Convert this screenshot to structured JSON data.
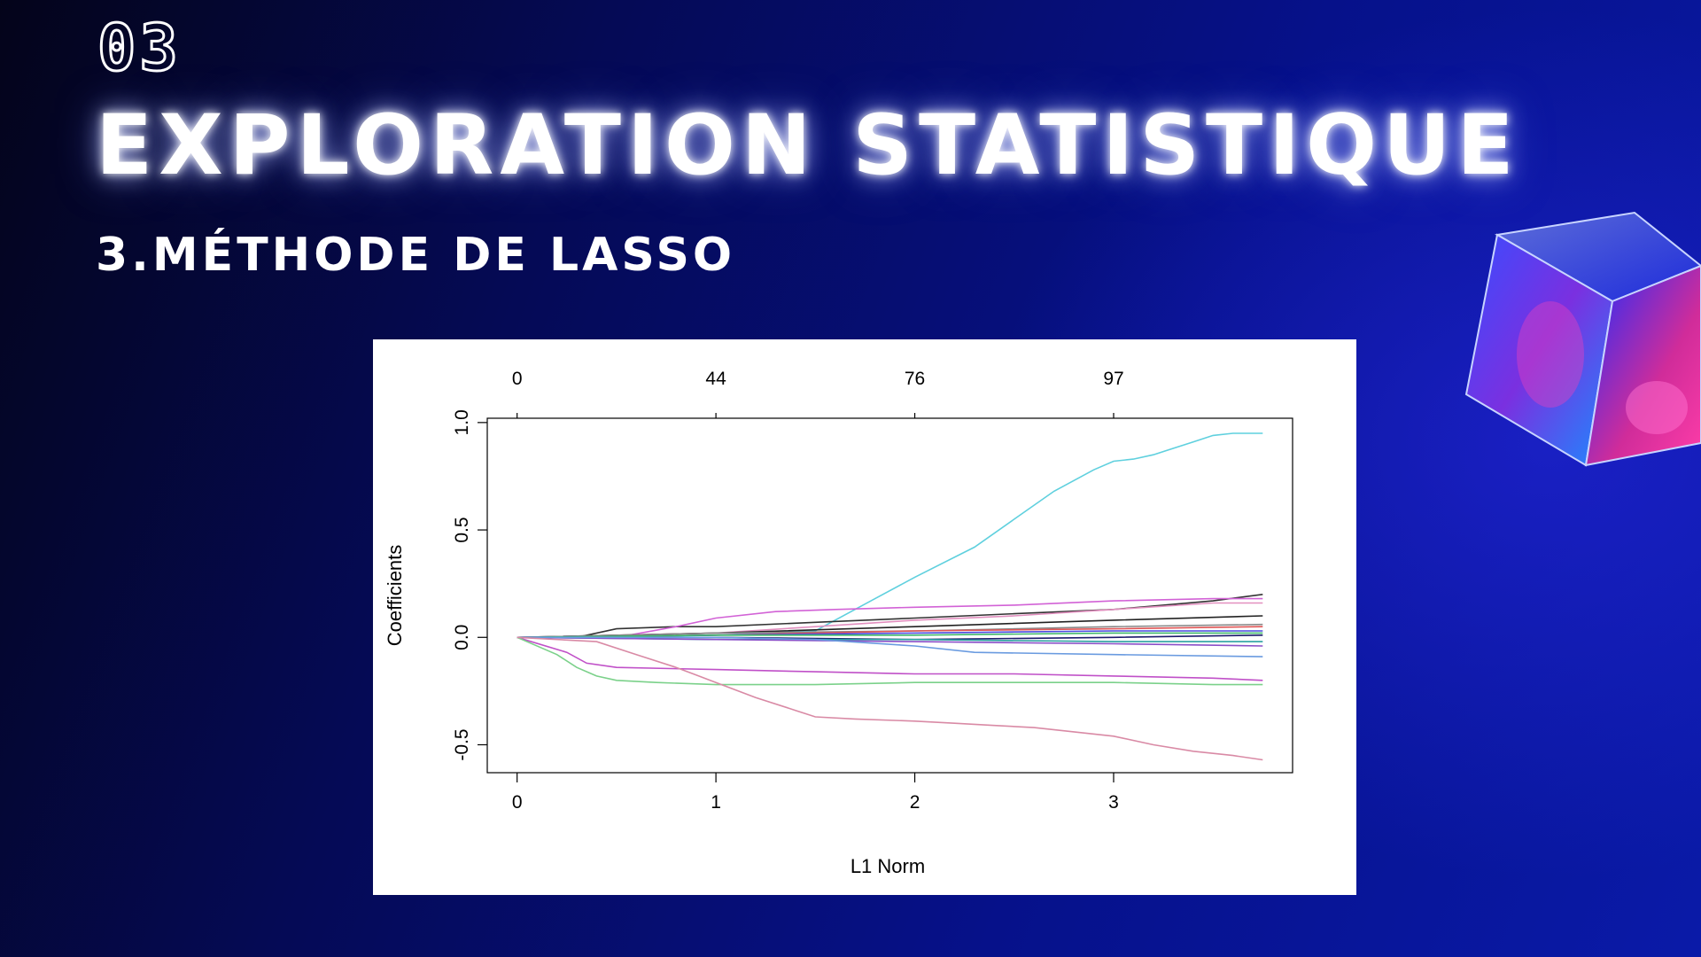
{
  "slide": {
    "chapter_number": "03",
    "title": "EXPLORATION STATISTIQUE",
    "subtitle": "3.MÉTHODE DE LASSO"
  },
  "chart_data": {
    "type": "line",
    "title": "",
    "xlabel": "L1 Norm",
    "ylabel": "Coefficients",
    "xlim": [
      -0.15,
      3.9
    ],
    "ylim": [
      -0.63,
      1.02
    ],
    "x_ticks": [
      0,
      1,
      2,
      3
    ],
    "y_ticks": [
      -0.5,
      0.0,
      0.5,
      1.0
    ],
    "x_tick_labels": [
      "0",
      "1",
      "2",
      "3"
    ],
    "y_tick_labels": [
      "-0.5",
      "0.0",
      "0.5",
      "1.0"
    ],
    "top_axis": {
      "positions": [
        0,
        1,
        2,
        3
      ],
      "labels": [
        "0",
        "44",
        "76",
        "97"
      ]
    },
    "series": [
      {
        "name": "coef-cyan",
        "color": "#5fd0de",
        "x": [
          0,
          0.5,
          1.0,
          1.5,
          1.8,
          2.0,
          2.3,
          2.5,
          2.7,
          2.9,
          3.0,
          3.1,
          3.2,
          3.4,
          3.5,
          3.6,
          3.75
        ],
        "y": [
          0,
          0,
          0.01,
          0.03,
          0.18,
          0.28,
          0.42,
          0.55,
          0.68,
          0.78,
          0.82,
          0.83,
          0.85,
          0.91,
          0.94,
          0.95,
          0.95
        ]
      },
      {
        "name": "coef-black-1",
        "color": "#333333",
        "x": [
          0,
          0.3,
          0.5,
          0.8,
          1.0,
          1.5,
          2.0,
          2.5,
          3.0,
          3.5,
          3.75
        ],
        "y": [
          0,
          0,
          0.04,
          0.05,
          0.05,
          0.07,
          0.09,
          0.11,
          0.13,
          0.17,
          0.2
        ]
      },
      {
        "name": "coef-magenta-1",
        "color": "#d262d6",
        "x": [
          0,
          0.5,
          0.8,
          1.0,
          1.3,
          1.6,
          2.0,
          2.5,
          3.0,
          3.5,
          3.75
        ],
        "y": [
          0,
          0,
          0.05,
          0.09,
          0.12,
          0.13,
          0.14,
          0.15,
          0.17,
          0.18,
          0.18
        ]
      },
      {
        "name": "coef-pink-1",
        "color": "#e28fbf",
        "x": [
          0,
          1.0,
          1.5,
          2.0,
          2.5,
          3.0,
          3.5,
          3.75
        ],
        "y": [
          0,
          0.02,
          0.05,
          0.08,
          0.1,
          0.13,
          0.16,
          0.16
        ]
      },
      {
        "name": "coef-black-2",
        "color": "#222222",
        "x": [
          0,
          1.0,
          2.0,
          3.0,
          3.75
        ],
        "y": [
          0,
          0.02,
          0.05,
          0.08,
          0.1
        ]
      },
      {
        "name": "coef-gray",
        "color": "#888888",
        "x": [
          0,
          1.0,
          2.0,
          3.0,
          3.75
        ],
        "y": [
          0,
          0.02,
          0.03,
          0.05,
          0.06
        ]
      },
      {
        "name": "coef-red",
        "color": "#e05555",
        "x": [
          0,
          1.0,
          2.0,
          3.0,
          3.75
        ],
        "y": [
          0,
          0.01,
          0.03,
          0.04,
          0.05
        ]
      },
      {
        "name": "coef-blue",
        "color": "#4a4ae0",
        "x": [
          0,
          1.0,
          2.0,
          3.0,
          3.75
        ],
        "y": [
          0,
          0.01,
          0.02,
          0.03,
          0.03
        ]
      },
      {
        "name": "coef-green-2",
        "color": "#3fb86a",
        "x": [
          0,
          1.0,
          2.0,
          3.0,
          3.75
        ],
        "y": [
          0,
          0.01,
          0.01,
          0.02,
          0.02
        ]
      },
      {
        "name": "coef-navy",
        "color": "#1a1a6a",
        "x": [
          0,
          1.0,
          2.0,
          3.0,
          3.75
        ],
        "y": [
          0,
          0.0,
          -0.01,
          0.0,
          0.01
        ]
      },
      {
        "name": "coef-teal",
        "color": "#2aa0a0",
        "x": [
          0,
          1.0,
          2.0,
          3.0,
          3.75
        ],
        "y": [
          0,
          -0.01,
          -0.01,
          -0.02,
          -0.02
        ]
      },
      {
        "name": "coef-purple",
        "color": "#8a4fc8",
        "x": [
          0,
          1.0,
          2.0,
          3.0,
          3.75
        ],
        "y": [
          0,
          -0.01,
          -0.02,
          -0.03,
          -0.04
        ]
      },
      {
        "name": "coef-lightblue",
        "color": "#6a9be0",
        "x": [
          0,
          1.0,
          1.5,
          2.0,
          2.3,
          3.0,
          3.75
        ],
        "y": [
          0,
          0,
          -0.01,
          -0.04,
          -0.07,
          -0.08,
          -0.09
        ]
      },
      {
        "name": "coef-magenta-2",
        "color": "#c050c8",
        "x": [
          0,
          0.25,
          0.35,
          0.5,
          1.0,
          1.5,
          2.0,
          2.5,
          3.0,
          3.5,
          3.75
        ],
        "y": [
          0,
          -0.07,
          -0.12,
          -0.14,
          -0.15,
          -0.16,
          -0.17,
          -0.17,
          -0.18,
          -0.19,
          -0.2
        ]
      },
      {
        "name": "coef-green-1",
        "color": "#7bd18a",
        "x": [
          0,
          0.2,
          0.3,
          0.4,
          0.5,
          0.7,
          1.0,
          1.5,
          2.0,
          2.5,
          3.0,
          3.5,
          3.75
        ],
        "y": [
          0,
          -0.08,
          -0.14,
          -0.18,
          -0.2,
          -0.21,
          -0.22,
          -0.22,
          -0.21,
          -0.21,
          -0.21,
          -0.22,
          -0.22
        ]
      },
      {
        "name": "coef-rose",
        "color": "#d98aa5",
        "x": [
          0,
          0.4,
          0.6,
          0.8,
          1.0,
          1.2,
          1.4,
          1.5,
          1.7,
          2.0,
          2.2,
          2.4,
          2.6,
          2.8,
          3.0,
          3.2,
          3.4,
          3.6,
          3.75
        ],
        "y": [
          0,
          -0.02,
          -0.08,
          -0.14,
          -0.21,
          -0.28,
          -0.34,
          -0.37,
          -0.38,
          -0.39,
          -0.4,
          -0.41,
          -0.42,
          -0.44,
          -0.46,
          -0.5,
          -0.53,
          -0.55,
          -0.57
        ]
      }
    ]
  }
}
